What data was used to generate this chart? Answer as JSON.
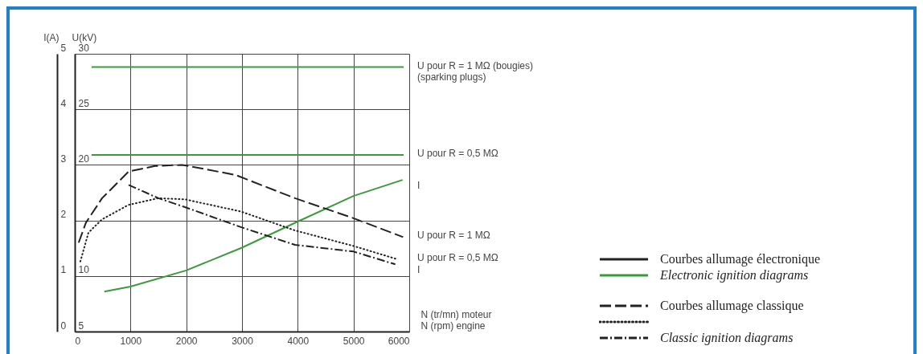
{
  "chart_data": {
    "type": "line",
    "xlabel": "N (tr/mn) moteur\nN (rpm) engine",
    "ylabel": "I(A)",
    "y2label": "U(kV)",
    "xlim": [
      0,
      6000
    ],
    "xticks": [
      0,
      1000,
      2000,
      3000,
      4000,
      5000,
      6000
    ],
    "ylim": [
      0,
      5
    ],
    "yticks": [
      0,
      1,
      2,
      3,
      4,
      5
    ],
    "y2lim": [
      5,
      30
    ],
    "y2ticks": [
      5,
      10,
      {
        "value": 15,
        "label": null
      },
      20,
      25,
      30
    ],
    "grid": true,
    "annotations": [
      "Courbes allumage électronique",
      "Electronic ignition diagrams",
      "Courbes allumage classique",
      "Classic ignition diagrams"
    ],
    "series": [
      {
        "name": "U pour R = 1 MΩ (bougies)\n(sparking plugs)",
        "color": "#3c9a3c",
        "axis": "y2",
        "line_style": "solid",
        "x": [
          300,
          5900
        ],
        "values": [
          28.8,
          28.8
        ]
      },
      {
        "name": "U pour R = 0,5 MΩ",
        "color": "#3c9a3c",
        "axis": "y2",
        "line_style": "solid",
        "x": [
          300,
          5900
        ],
        "values": [
          20.9,
          20.9
        ]
      },
      {
        "name": "I",
        "color": "#3c9a3c",
        "axis": "y",
        "line_style": "solid",
        "x": [
          530,
          1000,
          2000,
          3000,
          4000,
          5000,
          5880
        ],
        "values": [
          0.72,
          0.81,
          1.1,
          1.51,
          1.98,
          2.44,
          2.73
        ]
      },
      {
        "name": "U pour R = 1 MΩ",
        "color": "#222222",
        "axis": "y2",
        "line_style": "dashed",
        "x": [
          70,
          200,
          490,
          965,
          1440,
          1930,
          2880,
          3950,
          5000,
          5890
        ],
        "values": [
          13.0,
          14.8,
          17.0,
          19.4,
          19.9,
          20.0,
          19.1,
          17.0,
          15.2,
          13.5
        ]
      },
      {
        "name": "U pour R = 0,5 MΩ",
        "color": "#222222",
        "axis": "y2",
        "line_style": "dotted",
        "x": [
          100,
          245,
          490,
          965,
          1500,
          1975,
          2980,
          3950,
          5000,
          5790
        ],
        "values": [
          11.3,
          13.9,
          15.1,
          16.4,
          17.0,
          16.9,
          15.8,
          14.1,
          12.7,
          11.5
        ]
      },
      {
        "name": "I",
        "color": "#222222",
        "axis": "y",
        "line_style": "dashdot",
        "x": [
          965,
          1500,
          1975,
          2980,
          3950,
          5000,
          5750
        ],
        "values": [
          2.64,
          2.4,
          2.24,
          1.88,
          1.56,
          1.44,
          1.21
        ]
      }
    ]
  }
}
